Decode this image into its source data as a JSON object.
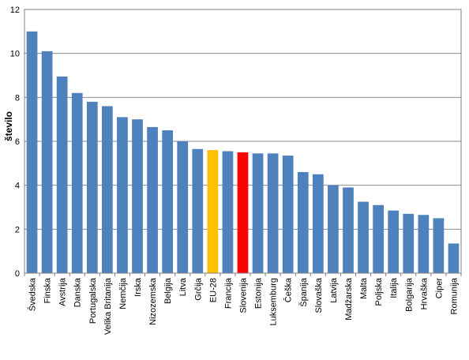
{
  "chart_data": {
    "type": "bar",
    "ylabel": "število",
    "ylim": [
      0,
      12
    ],
    "yticks": [
      0,
      2,
      4,
      6,
      8,
      10,
      12
    ],
    "grid": true,
    "categories": [
      "Švedska",
      "Finska",
      "Avstrija",
      "Danska",
      "Portugalska",
      "Velika Britanija",
      "Nemčija",
      "Irska",
      "Nizozemska",
      "Belgija",
      "Litva",
      "Grčija",
      "EU-28",
      "Francija",
      "Slovenija",
      "Estonija",
      "Luksemburg",
      "Češka",
      "Španija",
      "Slovaška",
      "Latvija",
      "Madžarska",
      "Malta",
      "Poljska",
      "Italija",
      "Bolgarija",
      "Hrvaška",
      "Ciper",
      "Romunija"
    ],
    "values": [
      11.0,
      10.1,
      8.95,
      8.2,
      7.8,
      7.6,
      7.1,
      7.0,
      6.65,
      6.5,
      6.0,
      5.65,
      5.6,
      5.55,
      5.5,
      5.45,
      5.45,
      5.35,
      4.6,
      4.5,
      4.0,
      3.9,
      3.25,
      3.1,
      2.85,
      2.7,
      2.65,
      2.5,
      1.35
    ],
    "colors": {
      "default": "#4F81BD",
      "EU-28": "#FFC000",
      "Slovenija": "#FF0000",
      "grid": "#8C8C8C",
      "axis": "#808080"
    }
  }
}
